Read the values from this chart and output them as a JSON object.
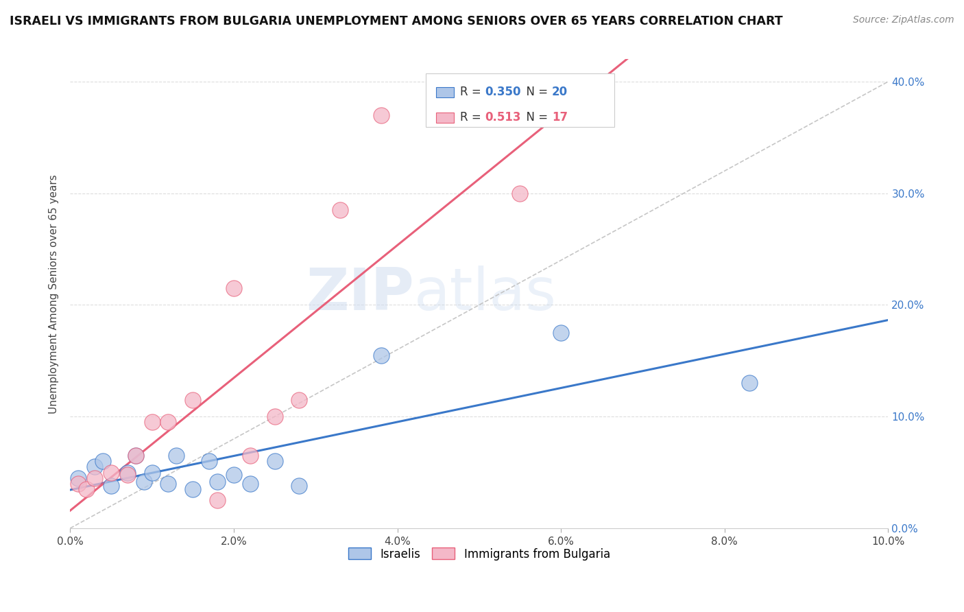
{
  "title": "ISRAELI VS IMMIGRANTS FROM BULGARIA UNEMPLOYMENT AMONG SENIORS OVER 65 YEARS CORRELATION CHART",
  "source": "Source: ZipAtlas.com",
  "ylabel": "Unemployment Among Seniors over 65 years",
  "xmin": 0.0,
  "xmax": 0.1,
  "ymin": 0.0,
  "ymax": 0.42,
  "yticks": [
    0.0,
    0.1,
    0.2,
    0.3,
    0.4
  ],
  "xticks": [
    0.0,
    0.02,
    0.04,
    0.06,
    0.08,
    0.1
  ],
  "xtick_labels": [
    "0.0%",
    "2.0%",
    "4.0%",
    "6.0%",
    "8.0%",
    "10.0%"
  ],
  "ytick_labels_right": [
    "0.0%",
    "10.0%",
    "20.0%",
    "30.0%",
    "40.0%"
  ],
  "legend_israelis": "Israelis",
  "legend_bulgaria": "Immigrants from Bulgaria",
  "israeli_color": "#aec6e8",
  "bulgarian_color": "#f4b8c8",
  "israeli_line_color": "#3a78c9",
  "bulgarian_line_color": "#e8607a",
  "diagonal_color": "#c0c0c0",
  "R_israeli": 0.35,
  "N_israeli": 20,
  "R_bulgarian": 0.513,
  "N_bulgarian": 17,
  "watermark_zip": "ZIP",
  "watermark_atlas": "atlas",
  "israelis_x": [
    0.001,
    0.003,
    0.004,
    0.005,
    0.007,
    0.008,
    0.009,
    0.01,
    0.012,
    0.013,
    0.015,
    0.017,
    0.018,
    0.02,
    0.022,
    0.025,
    0.028,
    0.038,
    0.06,
    0.083
  ],
  "israelis_y": [
    0.045,
    0.055,
    0.06,
    0.038,
    0.05,
    0.065,
    0.042,
    0.05,
    0.04,
    0.065,
    0.035,
    0.06,
    0.042,
    0.048,
    0.04,
    0.06,
    0.038,
    0.155,
    0.175,
    0.13
  ],
  "bulgarians_x": [
    0.001,
    0.002,
    0.003,
    0.005,
    0.007,
    0.008,
    0.01,
    0.012,
    0.015,
    0.018,
    0.02,
    0.022,
    0.025,
    0.028,
    0.033,
    0.038,
    0.055
  ],
  "bulgarians_y": [
    0.04,
    0.035,
    0.045,
    0.05,
    0.048,
    0.065,
    0.095,
    0.095,
    0.115,
    0.025,
    0.215,
    0.065,
    0.1,
    0.115,
    0.285,
    0.37,
    0.3
  ]
}
